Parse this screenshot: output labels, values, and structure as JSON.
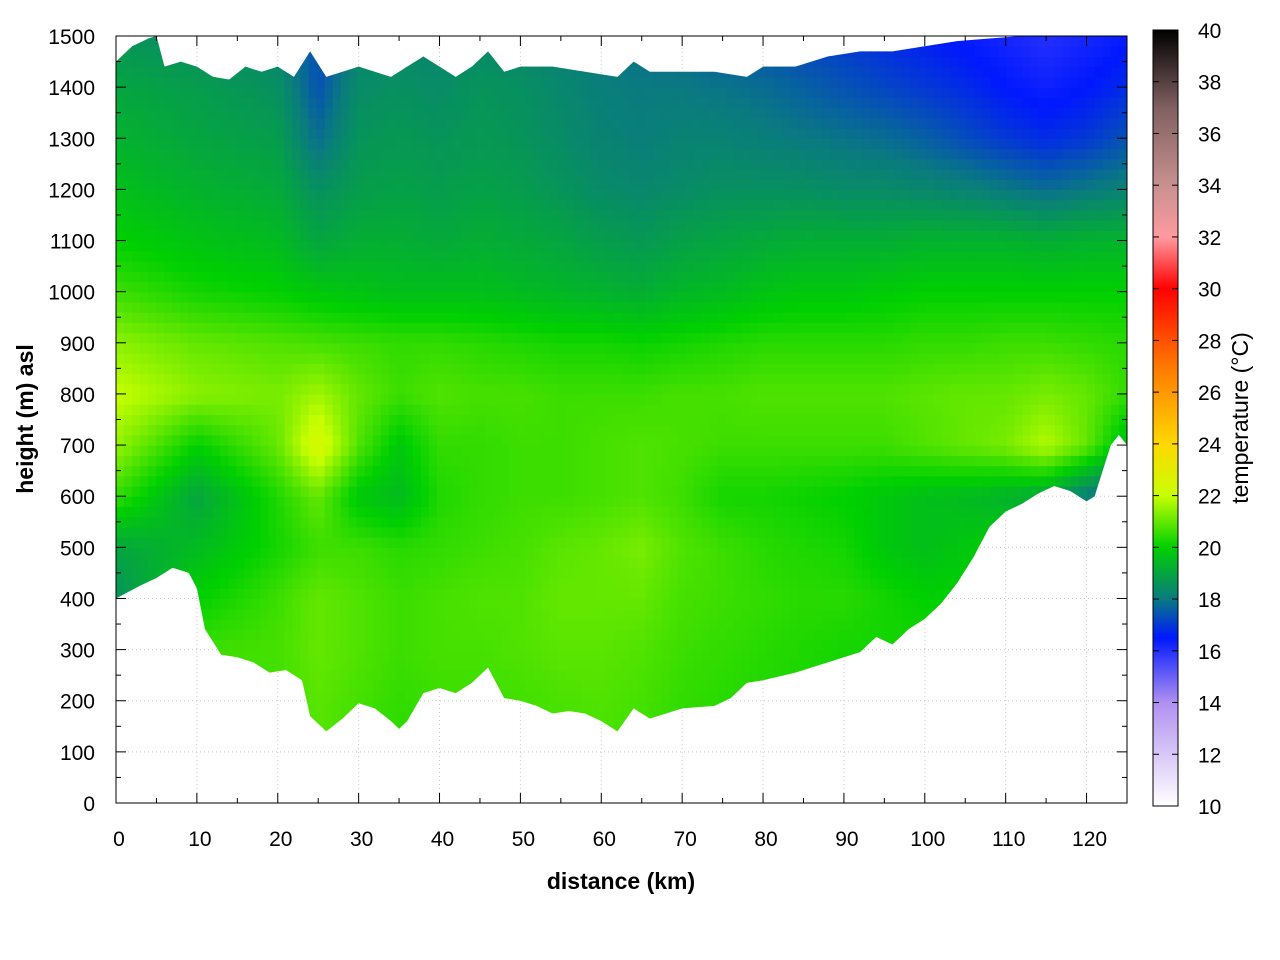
{
  "chart_data": {
    "type": "heatmap",
    "xlabel": "distance (km)",
    "ylabel": "height (m) asl",
    "colorbar_label": "temperature (°C)",
    "xlim": [
      0,
      125
    ],
    "ylim": [
      0,
      1500
    ],
    "clim": [
      10,
      40
    ],
    "x_ticks": [
      0,
      10,
      20,
      30,
      40,
      50,
      60,
      70,
      80,
      90,
      100,
      110,
      120
    ],
    "y_ticks": [
      0,
      100,
      200,
      300,
      400,
      500,
      600,
      700,
      800,
      900,
      1000,
      1100,
      1200,
      1300,
      1400,
      1500
    ],
    "colorbar_ticks": [
      10,
      12,
      14,
      16,
      18,
      20,
      22,
      24,
      26,
      28,
      30,
      32,
      34,
      36,
      38,
      40
    ],
    "grid": true,
    "colormap": [
      {
        "t": 10,
        "color": "#ffffff"
      },
      {
        "t": 14,
        "color": "#b090f0"
      },
      {
        "t": 16.5,
        "color": "#0018ff"
      },
      {
        "t": 18,
        "color": "#0a7a80"
      },
      {
        "t": 20,
        "color": "#00d000"
      },
      {
        "t": 22,
        "color": "#c8ff00"
      },
      {
        "t": 24,
        "color": "#ffd800"
      },
      {
        "t": 27,
        "color": "#ff7800"
      },
      {
        "t": 30,
        "color": "#ff0000"
      },
      {
        "t": 32,
        "color": "#ff9aa0"
      },
      {
        "t": 34,
        "color": "#c89090"
      },
      {
        "t": 37,
        "color": "#806060"
      },
      {
        "t": 40,
        "color": "#000000"
      }
    ],
    "terrain_profile": {
      "x": [
        0,
        3,
        5,
        7,
        9,
        10,
        11,
        13,
        15,
        17,
        19,
        21,
        23,
        24,
        26,
        28,
        30,
        32,
        34,
        35,
        36,
        38,
        40,
        42,
        44,
        46,
        48,
        50,
        52,
        54,
        56,
        58,
        60,
        62,
        64,
        66,
        68,
        70,
        74,
        76,
        78,
        80,
        84,
        88,
        92,
        94,
        96,
        98,
        100,
        102,
        104,
        106,
        108,
        110,
        112,
        114,
        116,
        118,
        120,
        121,
        122,
        123,
        124,
        125
      ],
      "height": [
        400,
        425,
        440,
        460,
        450,
        420,
        340,
        290,
        285,
        275,
        255,
        260,
        240,
        170,
        140,
        165,
        195,
        185,
        160,
        145,
        160,
        215,
        225,
        215,
        235,
        265,
        205,
        200,
        190,
        175,
        180,
        175,
        160,
        140,
        185,
        165,
        175,
        185,
        190,
        205,
        235,
        240,
        255,
        275,
        295,
        325,
        310,
        340,
        360,
        390,
        430,
        480,
        540,
        570,
        585,
        605,
        620,
        610,
        590,
        600,
        650,
        700,
        720,
        700
      ]
    },
    "top_boundary": {
      "x": [
        0,
        2,
        4,
        5,
        6,
        8,
        10,
        12,
        14,
        16,
        18,
        20,
        22,
        24,
        26,
        28,
        30,
        32,
        34,
        36,
        38,
        40,
        42,
        44,
        46,
        48,
        50,
        54,
        58,
        62,
        64,
        66,
        70,
        74,
        78,
        80,
        84,
        88,
        92,
        96,
        100,
        104,
        108,
        112,
        116,
        120,
        125
      ],
      "height": [
        1450,
        1480,
        1495,
        1500,
        1440,
        1450,
        1440,
        1420,
        1415,
        1440,
        1430,
        1440,
        1420,
        1470,
        1420,
        1430,
        1440,
        1430,
        1420,
        1440,
        1460,
        1440,
        1420,
        1440,
        1470,
        1430,
        1440,
        1440,
        1430,
        1420,
        1450,
        1430,
        1430,
        1430,
        1420,
        1440,
        1440,
        1460,
        1470,
        1470,
        1480,
        1490,
        1495,
        1500,
        1500,
        1500,
        1500
      ]
    },
    "temperature_field": {
      "x": [
        0,
        10,
        20,
        25,
        30,
        35,
        40,
        45,
        50,
        55,
        60,
        65,
        70,
        75,
        80,
        85,
        90,
        95,
        100,
        105,
        110,
        115,
        120,
        125
      ],
      "height": [
        100,
        300,
        400,
        500,
        600,
        700,
        800,
        900,
        1000,
        1100,
        1200,
        1300,
        1400,
        1500
      ],
      "values": [
        [
          20.5,
          20.5,
          20.5,
          20.8,
          20.6,
          20.4,
          20.5,
          20.5,
          20.5,
          20.6,
          20.7,
          20.6,
          20.4,
          20.3,
          20.2,
          20.2,
          20.2,
          20.2,
          20.2,
          20.2,
          20.2,
          20.2,
          20.2,
          20.2
        ],
        [
          20.5,
          20.6,
          20.7,
          21.0,
          20.8,
          20.6,
          20.7,
          20.7,
          20.8,
          20.9,
          20.9,
          20.8,
          20.6,
          20.5,
          20.4,
          20.3,
          20.2,
          20.2,
          20.2,
          20.2,
          20.2,
          20.2,
          20.2,
          20.2
        ],
        [
          18.5,
          20.0,
          20.6,
          21.0,
          20.8,
          20.6,
          20.7,
          20.8,
          20.8,
          21.0,
          21.0,
          21.0,
          20.7,
          20.6,
          20.5,
          20.4,
          20.4,
          20.2,
          20.0,
          20.0,
          20.0,
          20.0,
          20.0,
          20.0
        ],
        [
          19.0,
          19.5,
          20.2,
          20.6,
          20.6,
          20.4,
          20.5,
          20.6,
          20.7,
          20.9,
          21.0,
          21.2,
          20.8,
          20.6,
          20.4,
          20.3,
          20.2,
          19.8,
          19.6,
          19.8,
          20.0,
          20.0,
          20.0,
          20.0
        ],
        [
          20.5,
          19.0,
          20.3,
          21.0,
          19.8,
          19.5,
          20.3,
          20.5,
          20.6,
          20.6,
          20.7,
          20.8,
          20.6,
          20.2,
          20.2,
          20.1,
          20.0,
          19.8,
          19.6,
          19.5,
          19.3,
          19.0,
          18.0,
          17.5
        ],
        [
          21.5,
          20.0,
          21.0,
          22.5,
          20.8,
          19.8,
          20.5,
          20.5,
          20.6,
          20.6,
          20.7,
          20.8,
          20.7,
          20.6,
          20.6,
          20.6,
          20.6,
          20.6,
          20.8,
          21.0,
          21.2,
          21.8,
          21.0,
          19.5
        ],
        [
          22.0,
          21.4,
          21.2,
          21.6,
          21.0,
          20.6,
          20.8,
          20.7,
          20.7,
          20.6,
          20.6,
          20.6,
          20.7,
          20.7,
          20.8,
          20.8,
          20.8,
          20.8,
          20.9,
          21.0,
          21.0,
          21.2,
          21.0,
          20.5
        ],
        [
          21.4,
          21.0,
          20.8,
          20.7,
          20.6,
          20.5,
          20.5,
          20.4,
          20.3,
          20.2,
          20.2,
          20.1,
          20.2,
          20.3,
          20.4,
          20.4,
          20.4,
          20.4,
          20.5,
          20.5,
          20.6,
          20.6,
          20.5,
          20.4
        ],
        [
          20.6,
          20.2,
          20.0,
          19.8,
          19.7,
          19.6,
          19.6,
          19.6,
          19.5,
          19.4,
          19.3,
          19.2,
          19.4,
          19.5,
          19.7,
          19.8,
          19.8,
          19.9,
          20.0,
          20.0,
          20.0,
          20.0,
          20.0,
          20.0
        ],
        [
          20.0,
          19.7,
          19.5,
          19.0,
          19.2,
          19.2,
          19.1,
          19.2,
          19.1,
          19.0,
          18.8,
          18.7,
          18.9,
          19.0,
          19.1,
          19.2,
          19.2,
          19.2,
          19.3,
          19.3,
          19.3,
          19.2,
          19.3,
          19.3
        ],
        [
          19.6,
          19.3,
          19.1,
          18.5,
          18.8,
          18.9,
          18.8,
          18.9,
          18.8,
          18.6,
          18.4,
          18.3,
          18.4,
          18.5,
          18.5,
          18.5,
          18.4,
          18.4,
          18.3,
          18.2,
          18.0,
          17.8,
          18.0,
          18.2
        ],
        [
          19.3,
          19.0,
          18.8,
          17.8,
          18.6,
          18.7,
          18.6,
          18.7,
          18.6,
          18.4,
          18.2,
          18.1,
          18.2,
          18.2,
          18.1,
          18.0,
          17.9,
          17.8,
          17.6,
          17.3,
          17.0,
          16.8,
          17.0,
          17.4
        ],
        [
          19.0,
          18.8,
          18.5,
          17.4,
          18.4,
          18.5,
          18.4,
          18.6,
          18.5,
          18.3,
          18.1,
          18.0,
          18.0,
          17.9,
          17.8,
          17.6,
          17.4,
          17.2,
          17.0,
          16.8,
          16.5,
          16.3,
          16.5,
          16.8
        ],
        [
          18.6,
          18.4,
          18.2,
          17.3,
          18.2,
          18.3,
          18.2,
          18.3,
          18.2,
          18.1,
          18.0,
          17.8,
          17.7,
          17.5,
          17.3,
          17.2,
          17.0,
          16.8,
          16.6,
          16.4,
          16.2,
          16.0,
          16.2,
          16.4
        ]
      ]
    }
  }
}
